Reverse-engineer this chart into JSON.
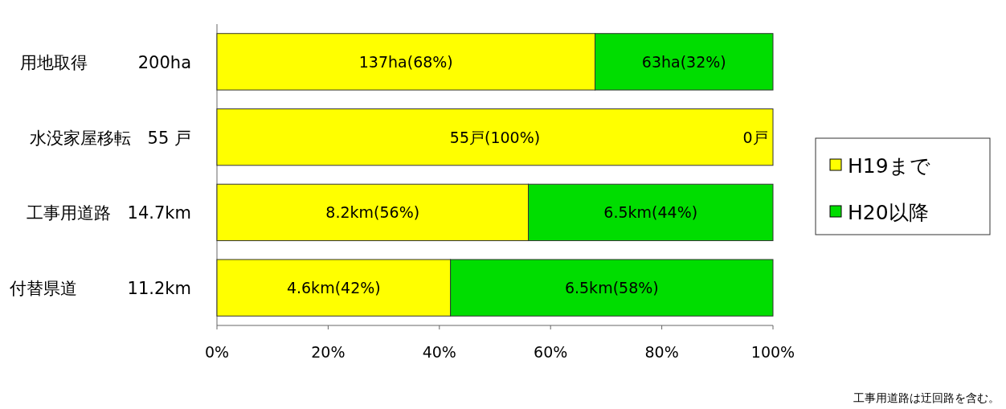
{
  "chart_data": {
    "type": "bar",
    "orientation": "horizontal",
    "stacked": true,
    "categories": [
      "用地取得　　　200ha",
      "水没家屋移転　55 戸",
      "工事用道路　14.7km",
      "付替県道　　　11.2km"
    ],
    "series": [
      {
        "name": "H19まで",
        "color": "#ffff00",
        "values": [
          68,
          100,
          56,
          42
        ],
        "value_labels": [
          "137ha(68%)",
          "55戸(100%)",
          "8.2km(56%)",
          "4.6km(42%)"
        ]
      },
      {
        "name": "H20以降",
        "color": "#00dd00",
        "values": [
          32,
          0,
          44,
          58
        ],
        "value_labels": [
          "63ha(32%)",
          "0戸",
          "6.5km(44%)",
          "6.5km(58%)"
        ]
      }
    ],
    "xlim": [
      0,
      100
    ],
    "xticks": [
      {
        "value": 0,
        "label": "0%"
      },
      {
        "value": 20,
        "label": "20%"
      },
      {
        "value": 40,
        "label": "40%"
      },
      {
        "value": 60,
        "label": "60%"
      },
      {
        "value": 80,
        "label": "80%"
      },
      {
        "value": 100,
        "label": "100%"
      }
    ],
    "legend": "right",
    "annotations": [
      "工事用道路は迂回路を含む。"
    ]
  }
}
